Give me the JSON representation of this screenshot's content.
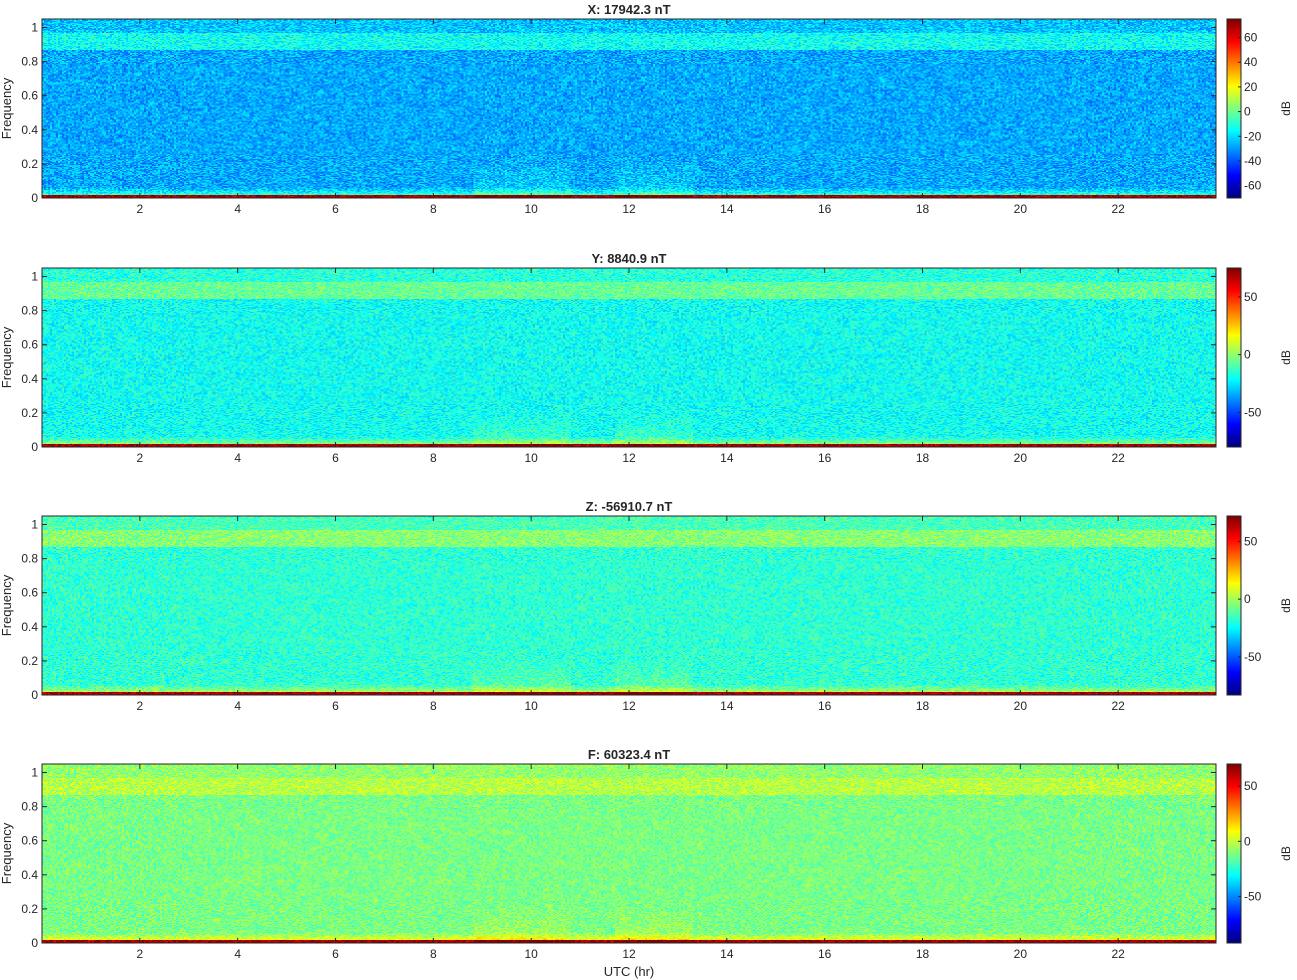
{
  "chart_data": [
    {
      "type": "heatmap",
      "title": "X: 17942.3 nT",
      "xlabel": "",
      "ylabel": "Frequency",
      "xlim": [
        0,
        24
      ],
      "ylim": [
        0,
        1.05
      ],
      "xticks": [
        "2",
        "4",
        "6",
        "8",
        "10",
        "12",
        "14",
        "16",
        "18",
        "20",
        "22"
      ],
      "yticks": [
        "0",
        "0.2",
        "0.4",
        "0.6",
        "0.8",
        "1"
      ],
      "colorbar": {
        "label": "dB",
        "range": [
          -70,
          75
        ],
        "ticks": [
          "60",
          "40",
          "20",
          "0",
          "-20",
          "-40",
          "-60"
        ],
        "tick_values": [
          60,
          40,
          20,
          0,
          -20,
          -40,
          -60
        ]
      },
      "background_db": -28,
      "band_db": -14
    },
    {
      "type": "heatmap",
      "title": "Y: 8840.9 nT",
      "xlabel": "",
      "ylabel": "Frequency",
      "xlim": [
        0,
        24
      ],
      "ylim": [
        0,
        1.05
      ],
      "xticks": [
        "2",
        "4",
        "6",
        "8",
        "10",
        "12",
        "14",
        "16",
        "18",
        "20",
        "22"
      ],
      "yticks": [
        "0",
        "0.2",
        "0.4",
        "0.6",
        "0.8",
        "1"
      ],
      "colorbar": {
        "label": "dB",
        "range": [
          -80,
          75
        ],
        "ticks": [
          "50",
          "0",
          "-50"
        ],
        "tick_values": [
          50,
          0,
          -50
        ]
      },
      "background_db": -20,
      "band_db": -6
    },
    {
      "type": "heatmap",
      "title": "Z: -56910.7 nT",
      "xlabel": "",
      "ylabel": "Frequency",
      "xlim": [
        0,
        24
      ],
      "ylim": [
        0,
        1.05
      ],
      "xticks": [
        "2",
        "4",
        "6",
        "8",
        "10",
        "12",
        "14",
        "16",
        "18",
        "20",
        "22"
      ],
      "yticks": [
        "0",
        "0.2",
        "0.4",
        "0.6",
        "0.8",
        "1"
      ],
      "colorbar": {
        "label": "dB",
        "range": [
          -83,
          72
        ],
        "ticks": [
          "50",
          "0",
          "-50"
        ],
        "tick_values": [
          50,
          0,
          -50
        ]
      },
      "background_db": -18,
      "band_db": -4
    },
    {
      "type": "heatmap",
      "title": "F: 60323.4 nT",
      "xlabel": "UTC (hr)",
      "ylabel": "Frequency",
      "xlim": [
        0,
        24
      ],
      "ylim": [
        0,
        1.05
      ],
      "xticks": [
        "2",
        "4",
        "6",
        "8",
        "10",
        "12",
        "14",
        "16",
        "18",
        "20",
        "22"
      ],
      "yticks": [
        "0",
        "0.2",
        "0.4",
        "0.6",
        "0.8",
        "1"
      ],
      "colorbar": {
        "label": "dB",
        "range": [
          -92,
          70
        ],
        "ticks": [
          "50",
          "0",
          "-50"
        ],
        "tick_values": [
          50,
          0,
          -50
        ]
      },
      "background_db": -12,
      "band_db": -2
    }
  ]
}
